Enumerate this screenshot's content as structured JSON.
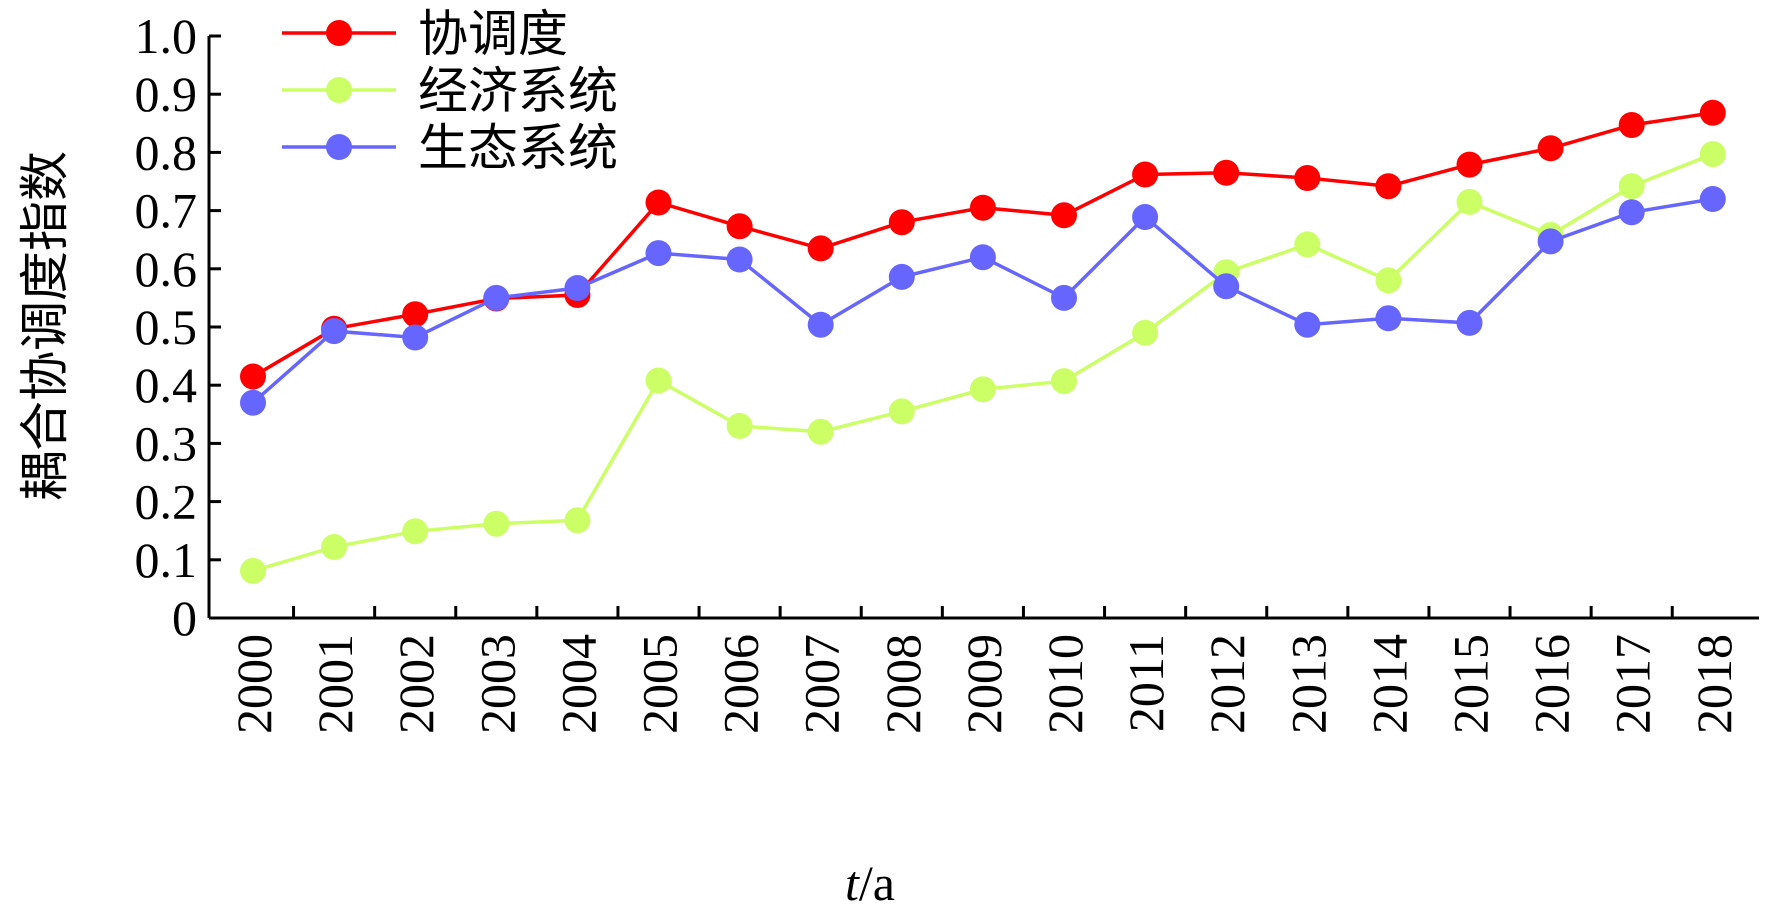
{
  "chart_data": {
    "type": "line",
    "title": "",
    "ylabel": "耦合协调度指数",
    "xlabel_var": "t",
    "xlabel_unit": "/a",
    "ylim": [
      0,
      1.0
    ],
    "yticks": [
      "0",
      "0.1",
      "0.2",
      "0.3",
      "0.4",
      "0.5",
      "0.6",
      "0.7",
      "0.8",
      "0.9",
      "1.0"
    ],
    "x": [
      "2000",
      "2001",
      "2002",
      "2003",
      "2004",
      "2005",
      "2006",
      "2007",
      "2008",
      "2009",
      "2010",
      "2011",
      "2012",
      "2013",
      "2014",
      "2015",
      "2016",
      "2017",
      "2018"
    ],
    "grid": false,
    "legend_position": "top-left",
    "series": [
      {
        "name": "协调度",
        "color": "#ff0000",
        "values": [
          0.415,
          0.497,
          0.522,
          0.549,
          0.555,
          0.714,
          0.673,
          0.635,
          0.68,
          0.705,
          0.692,
          0.762,
          0.765,
          0.756,
          0.742,
          0.779,
          0.807,
          0.847,
          0.868
        ]
      },
      {
        "name": "经济系统",
        "color": "#ccff66",
        "values": [
          0.081,
          0.122,
          0.149,
          0.162,
          0.168,
          0.408,
          0.33,
          0.32,
          0.355,
          0.393,
          0.407,
          0.49,
          0.594,
          0.642,
          0.58,
          0.715,
          0.658,
          0.742,
          0.797
        ]
      },
      {
        "name": "生态系统",
        "color": "#6666ff",
        "values": [
          0.37,
          0.493,
          0.482,
          0.55,
          0.567,
          0.627,
          0.616,
          0.504,
          0.586,
          0.62,
          0.55,
          0.689,
          0.57,
          0.504,
          0.515,
          0.507,
          0.647,
          0.697,
          0.72
        ]
      }
    ]
  }
}
